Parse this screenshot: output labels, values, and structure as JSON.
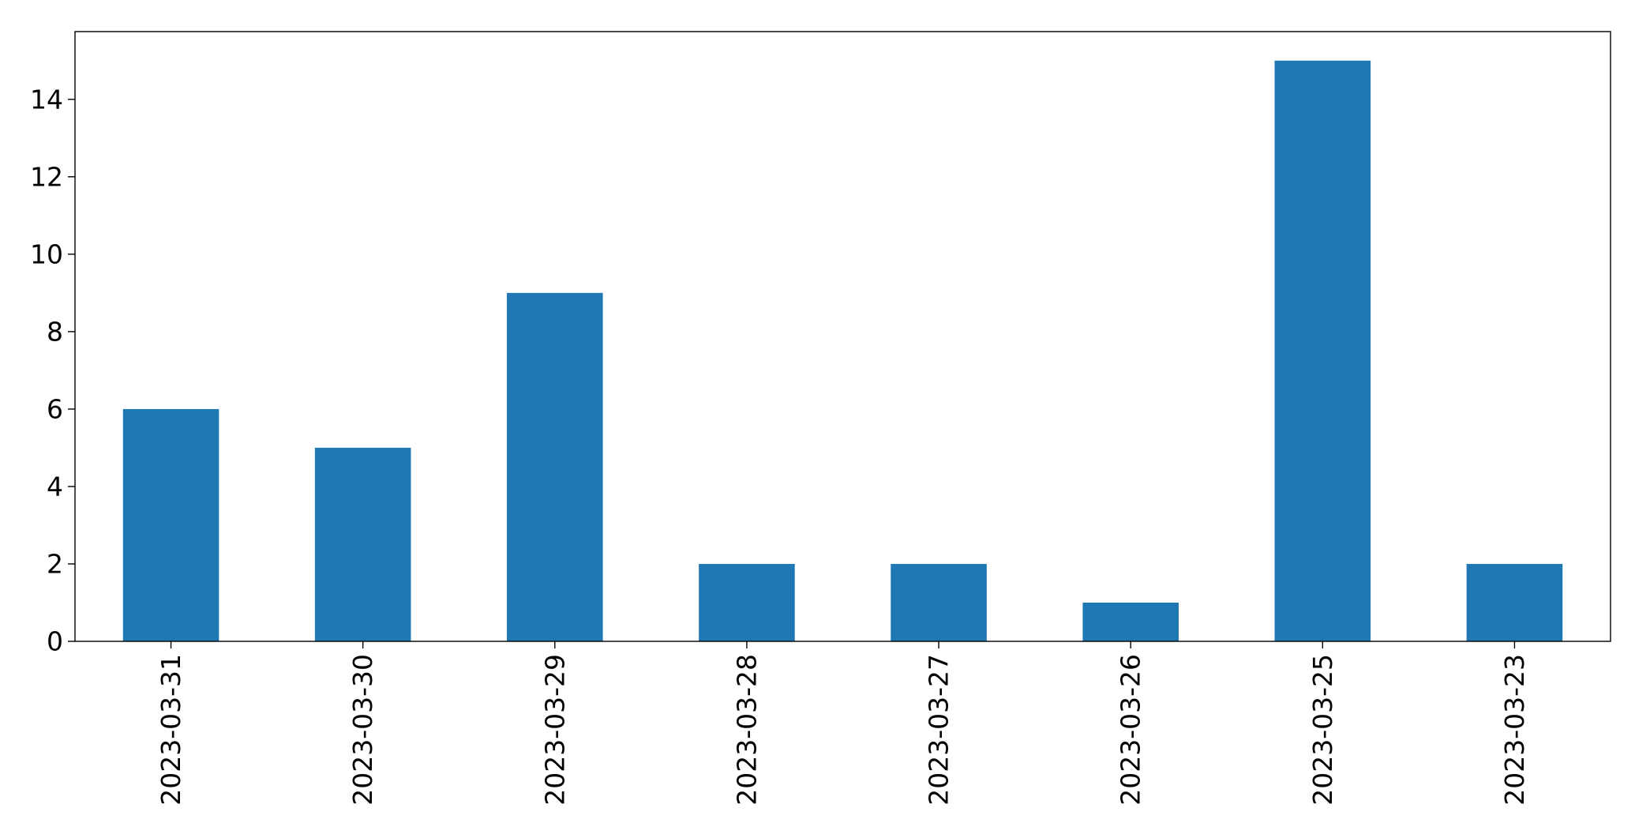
{
  "chart_data": {
    "type": "bar",
    "categories": [
      "2023-03-31",
      "2023-03-30",
      "2023-03-29",
      "2023-03-28",
      "2023-03-27",
      "2023-03-26",
      "2023-03-25",
      "2023-03-23"
    ],
    "values": [
      6,
      5,
      9,
      2,
      2,
      1,
      15,
      2
    ],
    "title": "",
    "xlabel": "",
    "ylabel": "",
    "ylim": [
      0,
      15.75
    ],
    "yticks": [
      0,
      2,
      4,
      6,
      8,
      10,
      12,
      14
    ],
    "grid": false,
    "legend": "none",
    "colors": {
      "bar": "#1f77b4",
      "axis": "#000000",
      "background": "#ffffff"
    }
  }
}
